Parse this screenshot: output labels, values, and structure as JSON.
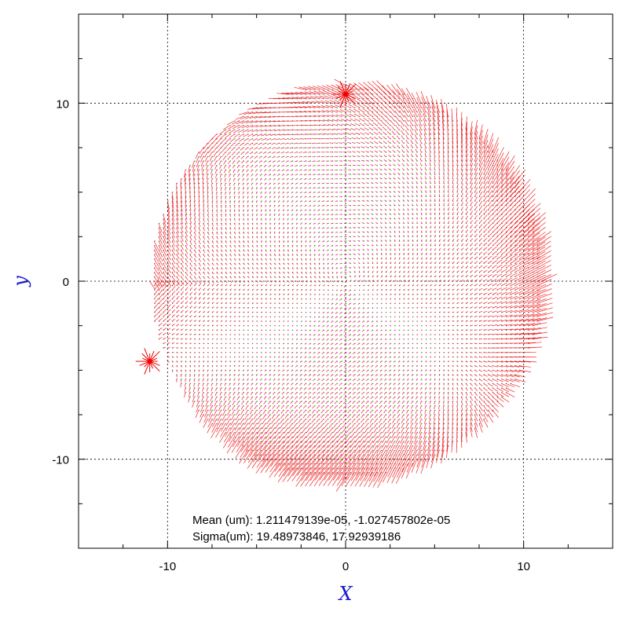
{
  "chart_data": {
    "type": "vector-field",
    "xlabel": "X",
    "ylabel": "y",
    "xlim": [
      -15,
      15
    ],
    "ylim": [
      -15,
      15
    ],
    "x_major_ticks": [
      -10,
      0,
      10
    ],
    "y_major_ticks": [
      -10,
      0,
      10
    ],
    "x_tick_labels": [
      "-10",
      "0",
      "10"
    ],
    "y_tick_labels": [
      "-10",
      "0",
      "10"
    ],
    "x_minor_step": 2.5,
    "y_minor_step": 2.5,
    "grid": true,
    "grid_style": "dotted",
    "field_region": {
      "shape": "circle",
      "center": [
        0,
        0
      ],
      "radius": 11
    },
    "sample_step": 0.25,
    "arrow_scale": 0.6,
    "edge_marks": [
      {
        "x": -11.0,
        "y": -4.5
      },
      {
        "x": 0.0,
        "y": 10.5
      }
    ],
    "annotations": [
      "Mean (um): 1.211479139e-05, -1.027457802e-05",
      "Sigma(um): 19.48973846, 17.92939186"
    ]
  },
  "colors": {
    "axis_title": "#1a1acc",
    "vector": "#ee0000",
    "grid_point_a": "#cc00cc",
    "grid_point_b": "#00aa00",
    "frame": "#000000",
    "grid": "#000000"
  }
}
